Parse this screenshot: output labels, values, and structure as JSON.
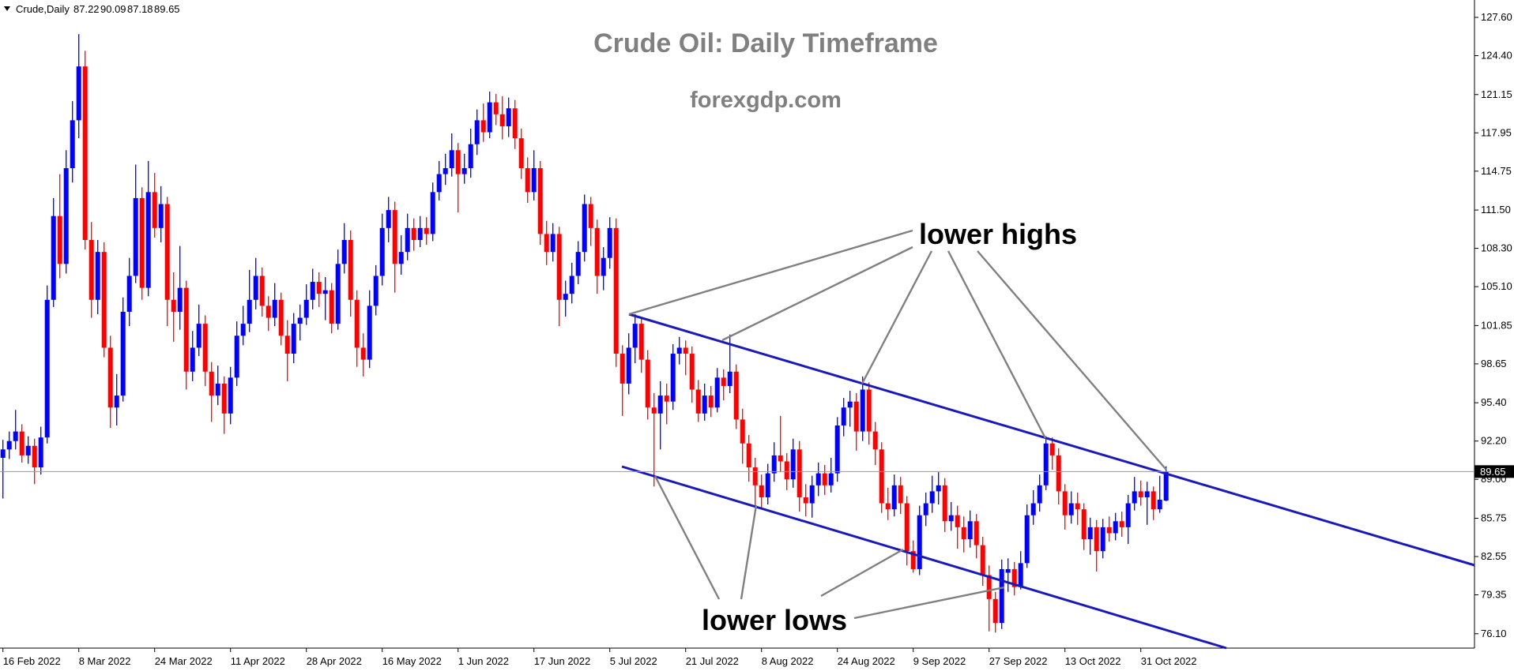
{
  "chart_data": {
    "type": "candlestick",
    "symbol": "Crude,Daily",
    "title": "Crude Oil: Daily Timeframe",
    "subtitle": "forexgdp.com",
    "annotations": [
      "lower highs",
      "lower lows"
    ],
    "categories": [
      "16 Feb 2022",
      null,
      null,
      null,
      null,
      null,
      null,
      null,
      null,
      null,
      null,
      null,
      "8 Mar 2022",
      null,
      null,
      null,
      null,
      null,
      null,
      null,
      null,
      null,
      null,
      null,
      "24 Mar 2022",
      null,
      null,
      null,
      null,
      null,
      null,
      null,
      null,
      null,
      null,
      null,
      "11 Apr 2022",
      null,
      null,
      null,
      null,
      null,
      null,
      null,
      null,
      null,
      null,
      null,
      "28 Apr 2022",
      null,
      null,
      null,
      null,
      null,
      null,
      null,
      null,
      null,
      null,
      null,
      "16 May 2022",
      null,
      null,
      null,
      null,
      null,
      null,
      null,
      null,
      null,
      null,
      null,
      "1 Jun 2022",
      null,
      null,
      null,
      null,
      null,
      null,
      null,
      null,
      null,
      null,
      null,
      "17 Jun 2022",
      null,
      null,
      null,
      null,
      null,
      null,
      null,
      null,
      null,
      null,
      null,
      "5 Jul 2022",
      null,
      null,
      null,
      null,
      null,
      null,
      null,
      null,
      null,
      null,
      null,
      "21 Jul 2022",
      null,
      null,
      null,
      null,
      null,
      null,
      null,
      null,
      null,
      null,
      null,
      "8 Aug 2022",
      null,
      null,
      null,
      null,
      null,
      null,
      null,
      null,
      null,
      null,
      null,
      "24 Aug 2022",
      null,
      null,
      null,
      null,
      null,
      null,
      null,
      null,
      null,
      null,
      null,
      "9 Sep 2022",
      null,
      null,
      null,
      null,
      null,
      null,
      null,
      null,
      null,
      null,
      null,
      "27 Sep 2022",
      null,
      null,
      null,
      null,
      null,
      null,
      null,
      null,
      null,
      null,
      null,
      "13 Oct 2022",
      null,
      null,
      null,
      null,
      null,
      null,
      null,
      null,
      null,
      null,
      null,
      "31 Oct 2022",
      null,
      null,
      null,
      null
    ],
    "series": [
      {
        "up_color": "#0000ff",
        "down_color": "#ff0000",
        "open": [
          90.8,
          91.5,
          92.2,
          93,
          91,
          91.8,
          90,
          92.5,
          104,
          111,
          107,
          115,
          119,
          123.5,
          109,
          104,
          108,
          100,
          95,
          96,
          103,
          106,
          112.5,
          105,
          113,
          110,
          112,
          104,
          103,
          105,
          98,
          100,
          102,
          98,
          96,
          97,
          94.5,
          97.5,
          101,
          102,
          104,
          106,
          103.5,
          102.5,
          104,
          101,
          99.5,
          102,
          102.5,
          104,
          105.5,
          104.5,
          104.8,
          102,
          107,
          109,
          104,
          100,
          99,
          103.5,
          106,
          110,
          111.5,
          107,
          108,
          110,
          109,
          110,
          109.5,
          113,
          114.5,
          115,
          116.5,
          114.5,
          115,
          117,
          119,
          118,
          120.5,
          119.5,
          118.5,
          120,
          117.5,
          115,
          113,
          115,
          109.5,
          108,
          109.5,
          104,
          104.5,
          106,
          108,
          112,
          110,
          106,
          107.5,
          110,
          99.5,
          97,
          100,
          102,
          99,
          95,
          94.5,
          96,
          95.5,
          99.5,
          100,
          99.5,
          96.5,
          94.5,
          96,
          95,
          97.5,
          96.8,
          98,
          94,
          92,
          90,
          88.5,
          87.5,
          89.5,
          91,
          90.5,
          89,
          91.5,
          87.5,
          87,
          88.5,
          89.5,
          88.5,
          89.5,
          93.5,
          95,
          95.5,
          93,
          96.5,
          93,
          91.5,
          87,
          86.5,
          88.5,
          87,
          83,
          81.5,
          86,
          87,
          88,
          88.5,
          85.5,
          86,
          85,
          84,
          85.5,
          83.5,
          81,
          79,
          77,
          81.2,
          81.5,
          80,
          82,
          86,
          87,
          88.5,
          92,
          91,
          88,
          86,
          87,
          86.5,
          84,
          85,
          83,
          85,
          84.5,
          85.5,
          85,
          87,
          88,
          87.5,
          88,
          86.5,
          87.22
        ],
        "high": [
          92.3,
          93,
          94.8,
          93.6,
          92.6,
          92.4,
          93.4,
          105.2,
          112.5,
          114.5,
          116.5,
          120.6,
          126.2,
          124.8,
          110.5,
          109,
          108.8,
          101,
          97.8,
          104.2,
          107.5,
          115.3,
          113.4,
          115.6,
          114.6,
          113.5,
          112.6,
          106.3,
          108.5,
          105.6,
          101.4,
          103.6,
          102.7,
          98.8,
          98.5,
          97.6,
          98.4,
          102.2,
          103.5,
          106.5,
          107.5,
          106.7,
          104.3,
          105.4,
          104.6,
          102.3,
          102.9,
          103.6,
          105.3,
          106.6,
          106.3,
          105.9,
          105.4,
          108.2,
          110.4,
          109.8,
          104.8,
          101.2,
          104.8,
          106.9,
          111.2,
          112.6,
          112.2,
          109.4,
          111.2,
          110.8,
          111,
          110.9,
          113.8,
          115.6,
          116.2,
          117.9,
          117.1,
          116.2,
          118.3,
          119.9,
          120.4,
          121.4,
          121.2,
          121,
          120.9,
          120.7,
          118.3,
          115.9,
          116.5,
          115.6,
          110.6,
          110.4,
          110.1,
          105.6,
          107.1,
          108.9,
          112.8,
          112.6,
          110.7,
          108.4,
          110.9,
          110.8,
          100.2,
          101.2,
          102.8,
          102.5,
          99.8,
          96.2,
          97.2,
          97,
          100.3,
          100.9,
          100.6,
          100.1,
          97.3,
          97,
          96.8,
          98.3,
          98.2,
          101.1,
          98.6,
          94.9,
          92.7,
          90.8,
          89.4,
          90.3,
          92.1,
          94.3,
          91.2,
          92.4,
          92.2,
          88.6,
          89.3,
          90.4,
          90.2,
          90.8,
          94.2,
          95.8,
          96.4,
          96.2,
          97.6,
          97.1,
          93.8,
          92.1,
          88.3,
          89.4,
          89.2,
          87.6,
          83.9,
          86.8,
          87.9,
          89.3,
          89.6,
          89.1,
          87.1,
          86.8,
          85.9,
          86.4,
          86.1,
          84.2,
          81.8,
          79.6,
          82.3,
          82.4,
          82.1,
          83,
          86.9,
          88.1,
          89.4,
          92.6,
          92.5,
          91.6,
          88.6,
          88,
          87.9,
          87,
          85.8,
          85.6,
          85.7,
          85.9,
          86.2,
          86.3,
          87.7,
          89.2,
          88.9,
          88.8,
          88.4,
          89.3,
          90.09
        ],
        "low": [
          87.4,
          90.7,
          91.5,
          90.4,
          90.3,
          88.6,
          89.4,
          92,
          103.4,
          105.8,
          106.2,
          113.8,
          117.5,
          108.2,
          102.5,
          102.8,
          99.2,
          93.3,
          93.5,
          95.5,
          101.8,
          105.4,
          104,
          104.3,
          109.2,
          108.8,
          101.8,
          100.5,
          101.5,
          96.5,
          97.2,
          99.3,
          96.8,
          93.8,
          95.2,
          92.8,
          93.6,
          96.8,
          100.2,
          101.3,
          103.2,
          102.6,
          101.4,
          101.8,
          100.2,
          97.2,
          98.7,
          100.6,
          101.9,
          103.2,
          103.4,
          102.3,
          101.2,
          101.5,
          106.2,
          102.6,
          98.4,
          97.6,
          98.3,
          102.7,
          105.2,
          108.8,
          104.6,
          106.1,
          107.3,
          108.1,
          108.4,
          108.6,
          108.9,
          112.3,
          113.6,
          114.3,
          111.3,
          113.7,
          114.2,
          116.1,
          117.2,
          117.5,
          118.6,
          117.4,
          117.6,
          116.6,
          114.1,
          112.1,
          112.3,
          108.6,
          106.9,
          107.2,
          101.8,
          102.6,
          103.7,
          105.3,
          107.2,
          108.5,
          104.5,
          104.8,
          106.6,
          98.4,
          94.3,
          96.1,
          98.7,
          97.9,
          94,
          88.4,
          91.5,
          93.6,
          94.8,
          98.6,
          97.7,
          95.4,
          93.8,
          93.9,
          94.2,
          94.6,
          95.6,
          96.2,
          93.2,
          90.3,
          88.8,
          86.8,
          86.6,
          86.9,
          88.8,
          89.6,
          88.1,
          88.3,
          86.3,
          85.9,
          85.8,
          87.6,
          87.7,
          87.9,
          88.8,
          92.6,
          93.4,
          91.4,
          92.2,
          91.9,
          90.2,
          86.2,
          85.6,
          85.9,
          86.1,
          81.8,
          81.2,
          81,
          85.1,
          86.2,
          86.9,
          84.6,
          84.7,
          83.2,
          82.9,
          83.3,
          82.4,
          80.1,
          76.3,
          76.2,
          76.5,
          79.6,
          79.3,
          79.8,
          81.6,
          85.2,
          86.3,
          88.1,
          89.8,
          86.9,
          84.8,
          85.3,
          85.2,
          83.1,
          82.7,
          81.3,
          82.4,
          83.8,
          83.9,
          84.2,
          83.6,
          86.4,
          86.8,
          85.2,
          85.6,
          86.2,
          87.18
        ],
        "close": [
          91.5,
          92.2,
          93,
          91,
          91.8,
          90,
          92.5,
          104,
          111,
          107,
          115,
          119,
          123.5,
          109,
          104,
          108,
          100,
          95,
          96,
          103,
          106,
          112.5,
          105,
          113,
          110,
          112,
          104,
          103,
          105,
          98,
          100,
          102,
          98,
          96,
          97,
          94.5,
          97.5,
          101,
          102,
          104,
          106,
          103.5,
          102.5,
          104,
          101,
          99.5,
          102,
          102.5,
          104,
          105.5,
          104.5,
          104.8,
          102,
          107,
          109,
          104,
          100,
          99,
          103.5,
          106,
          110,
          111.5,
          107,
          108,
          110,
          109,
          110,
          109.5,
          113,
          114.5,
          115,
          116.5,
          114.5,
          115,
          117,
          119,
          118,
          120.5,
          119.5,
          118.5,
          120,
          117.5,
          115,
          113,
          115,
          109.5,
          108,
          109.5,
          104,
          104.5,
          106,
          108,
          112,
          110,
          106,
          107.5,
          110,
          99.5,
          97,
          100,
          102,
          99,
          95,
          94.5,
          96,
          95.5,
          99.5,
          100,
          99.5,
          96.5,
          94.5,
          96,
          95,
          97.5,
          96.8,
          98,
          94,
          92,
          90,
          88.5,
          87.5,
          89.5,
          91,
          90.5,
          89,
          91.5,
          87.5,
          87,
          88.5,
          89.5,
          88.5,
          89.5,
          93.5,
          95,
          95.5,
          93,
          96.5,
          93,
          91.5,
          87,
          86.5,
          88.5,
          87,
          83,
          81.5,
          86,
          87,
          88,
          88.5,
          85.5,
          86,
          85,
          84,
          85.5,
          83.5,
          81,
          79,
          77,
          81.5,
          81.5,
          80,
          82,
          86,
          87,
          88.5,
          92,
          91,
          88,
          86,
          87,
          86.5,
          84,
          85,
          83,
          85,
          84.5,
          85.5,
          85,
          87,
          88,
          87.5,
          88,
          86.5,
          87.3,
          89.65
        ]
      }
    ],
    "ylim": [
      74.9,
      129.05
    ],
    "yticks": [
      {
        "value": 127.6,
        "label": "127.60"
      },
      {
        "value": 124.4,
        "label": "124.40"
      },
      121.15,
      117.95,
      114.75,
      {
        "value": 111.5,
        "label": "111.50"
      },
      {
        "value": 108.3,
        "label": "108.30"
      },
      {
        "value": 105.1,
        "label": "105.10"
      },
      101.85,
      98.65,
      {
        "value": 95.4,
        "label": "95.40"
      },
      {
        "value": 92.2,
        "label": "92.20"
      },
      {
        "value": 89,
        "label": "89.00"
      },
      85.75,
      82.55,
      79.35,
      {
        "value": 76.1,
        "label": "76.10"
      }
    ]
  }
}
